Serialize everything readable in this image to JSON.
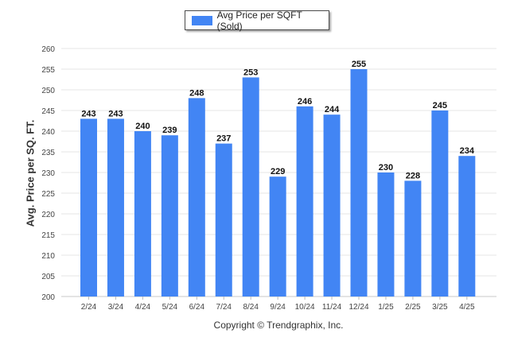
{
  "chart_data": {
    "type": "bar",
    "categories": [
      "2/24",
      "3/24",
      "4/24",
      "5/24",
      "6/24",
      "7/24",
      "8/24",
      "9/24",
      "10/24",
      "11/24",
      "12/24",
      "1/25",
      "2/25",
      "3/25",
      "4/25"
    ],
    "series": [
      {
        "name": "Avg Price per SQFT (Sold)",
        "values": [
          243,
          243,
          240,
          239,
          248,
          237,
          253,
          229,
          246,
          244,
          255,
          230,
          228,
          245,
          234
        ]
      }
    ],
    "ylabel": "Avg. Price per SQ. FT.",
    "xlabel": "",
    "ylim": [
      200,
      260
    ],
    "yticks": [
      200,
      205,
      210,
      215,
      220,
      225,
      230,
      235,
      240,
      245,
      250,
      255,
      260
    ],
    "grid": true,
    "legend_position": "top-center",
    "bar_color": "#4285f4",
    "data_labels": true
  },
  "footer": {
    "copyright": "Copyright © Trendgraphix, Inc."
  }
}
